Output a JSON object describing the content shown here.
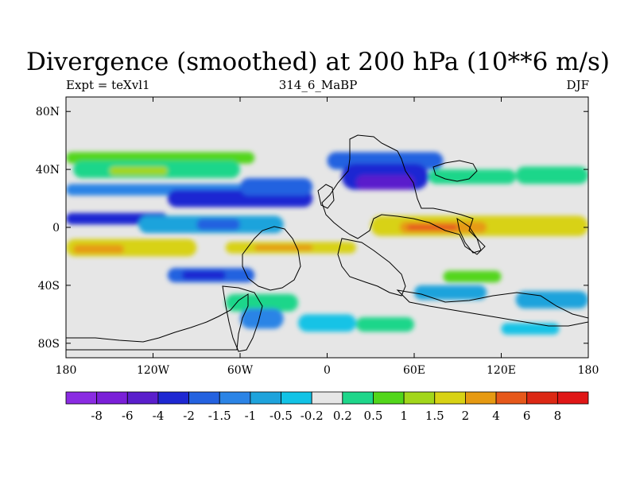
{
  "chart_data": {
    "type": "heatmap",
    "title": "Divergence (smoothed) at 200 hPa (10**6 m/s)",
    "subtitle_left": "Expt = teXvl1",
    "subtitle_center": "314_6_MaBP",
    "subtitle_right": "DJF",
    "xlim": [
      -180,
      180
    ],
    "ylim": [
      -90,
      90
    ],
    "x_ticks": [
      {
        "value": -180,
        "label": "180"
      },
      {
        "value": -120,
        "label": "120W"
      },
      {
        "value": -60,
        "label": "60W"
      },
      {
        "value": 0,
        "label": "0"
      },
      {
        "value": 60,
        "label": "60E"
      },
      {
        "value": 120,
        "label": "120E"
      },
      {
        "value": 180,
        "label": "180"
      }
    ],
    "y_ticks": [
      {
        "value": 80,
        "label": "80N"
      },
      {
        "value": 40,
        "label": "40N"
      },
      {
        "value": 0,
        "label": "0"
      },
      {
        "value": -40,
        "label": "40S"
      },
      {
        "value": -80,
        "label": "80S"
      }
    ],
    "colorbar": {
      "levels": [
        "-8",
        "-6",
        "-4",
        "-2",
        "-1.5",
        "-1",
        "-0.5",
        "-0.2",
        "0.2",
        "0.5",
        "1",
        "1.5",
        "2",
        "4",
        "6",
        "8"
      ],
      "colors": [
        "#8a2be2",
        "#7a1fd8",
        "#5a1ecc",
        "#1e28d2",
        "#2462e0",
        "#2b84e6",
        "#1ea3dc",
        "#12c3e6",
        "#e6e6e6",
        "#1ed68a",
        "#52d61a",
        "#a2d61a",
        "#d8d214",
        "#e69a12",
        "#e6581a",
        "#dc2814",
        "#e01616"
      ]
    },
    "bands": [
      {
        "lat": [
          52,
          44
        ],
        "lon": [
          -180,
          -50
        ],
        "level": 10
      },
      {
        "lat": [
          46,
          34
        ],
        "lon": [
          -175,
          -60
        ],
        "level": 9
      },
      {
        "lat": [
          42,
          36
        ],
        "lon": [
          -150,
          -110
        ],
        "level": 11
      },
      {
        "lat": [
          30,
          22
        ],
        "lon": [
          -180,
          -40
        ],
        "level": 5
      },
      {
        "lat": [
          26,
          14
        ],
        "lon": [
          -110,
          -10
        ],
        "level": 3
      },
      {
        "lat": [
          34,
          22
        ],
        "lon": [
          -60,
          -10
        ],
        "level": 4
      },
      {
        "lat": [
          10,
          2
        ],
        "lon": [
          -180,
          -110
        ],
        "level": 3
      },
      {
        "lat": [
          8,
          -4
        ],
        "lon": [
          -130,
          -30
        ],
        "level": 6
      },
      {
        "lat": [
          6,
          -2
        ],
        "lon": [
          -90,
          -60
        ],
        "level": 4
      },
      {
        "lat": [
          -8,
          -20
        ],
        "lon": [
          -180,
          -90
        ],
        "level": 12
      },
      {
        "lat": [
          -12,
          -18
        ],
        "lon": [
          -175,
          -140
        ],
        "level": 13
      },
      {
        "lat": [
          -10,
          -18
        ],
        "lon": [
          -70,
          20
        ],
        "level": 12
      },
      {
        "lat": [
          -12,
          -16
        ],
        "lon": [
          -50,
          -10
        ],
        "level": 13
      },
      {
        "lat": [
          -28,
          -38
        ],
        "lon": [
          -110,
          -50
        ],
        "level": 4
      },
      {
        "lat": [
          -30,
          -36
        ],
        "lon": [
          -100,
          -70
        ],
        "level": 3
      },
      {
        "lat": [
          -50,
          -56
        ],
        "lon": [
          -180,
          -130
        ],
        "level": 8
      },
      {
        "lat": [
          -46,
          -58
        ],
        "lon": [
          -70,
          -20
        ],
        "level": 9
      },
      {
        "lat": [
          -56,
          -70
        ],
        "lon": [
          -60,
          -30
        ],
        "level": 5
      },
      {
        "lat": [
          -60,
          -72
        ],
        "lon": [
          -20,
          20
        ],
        "level": 7
      },
      {
        "lat": [
          52,
          40
        ],
        "lon": [
          0,
          80
        ],
        "level": 4
      },
      {
        "lat": [
          44,
          26
        ],
        "lon": [
          10,
          70
        ],
        "level": 3
      },
      {
        "lat": [
          36,
          26
        ],
        "lon": [
          20,
          60
        ],
        "level": 2
      },
      {
        "lat": [
          40,
          30
        ],
        "lon": [
          70,
          130
        ],
        "level": 9
      },
      {
        "lat": [
          42,
          30
        ],
        "lon": [
          130,
          180
        ],
        "level": 9
      },
      {
        "lat": [
          8,
          -6
        ],
        "lon": [
          30,
          180
        ],
        "level": 12
      },
      {
        "lat": [
          4,
          -4
        ],
        "lon": [
          50,
          110
        ],
        "level": 13
      },
      {
        "lat": [
          2,
          -2
        ],
        "lon": [
          55,
          90
        ],
        "level": 14
      },
      {
        "lat": [
          -30,
          -38
        ],
        "lon": [
          80,
          120
        ],
        "level": 10
      },
      {
        "lat": [
          -40,
          -50
        ],
        "lon": [
          60,
          110
        ],
        "level": 6
      },
      {
        "lat": [
          -44,
          -56
        ],
        "lon": [
          130,
          180
        ],
        "level": 6
      },
      {
        "lat": [
          -62,
          -72
        ],
        "lon": [
          20,
          60
        ],
        "level": 9
      },
      {
        "lat": [
          -66,
          -74
        ],
        "lon": [
          120,
          160
        ],
        "level": 7
      }
    ]
  }
}
